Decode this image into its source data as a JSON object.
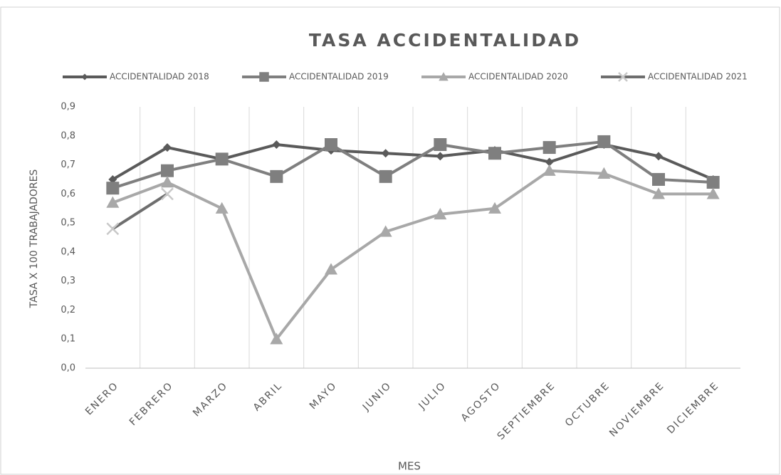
{
  "chart_data": {
    "type": "line",
    "title": "TASA ACCIDENTALIDAD",
    "x_label": "MES",
    "y_label": "TASA X 100 TRABAJADORES",
    "categories": [
      "ENERO",
      "FEBRERO",
      "MARZO",
      "ABRIL",
      "MAYO",
      "JUNIO",
      "JULIO",
      "AGOSTO",
      "SEPTIEMBRE",
      "OCTUBRE",
      "NOVIEMBRE",
      "DICIEMBRE"
    ],
    "series": [
      {
        "name": "ACCIDENTALIDAD 2018",
        "color": "#5a5a5a",
        "marker": "diamond",
        "values": [
          0.65,
          0.76,
          0.72,
          0.77,
          0.75,
          0.74,
          0.73,
          0.75,
          0.71,
          0.77,
          0.73,
          0.65
        ]
      },
      {
        "name": "ACCIDENTALIDAD 2019",
        "color": "#7f7f7f",
        "marker": "square",
        "values": [
          0.62,
          0.68,
          0.72,
          0.66,
          0.77,
          0.66,
          0.77,
          0.74,
          0.76,
          0.78,
          0.65,
          0.64
        ]
      },
      {
        "name": "ACCIDENTALIDAD 2020",
        "color": "#a8a8a8",
        "marker": "triangle",
        "values": [
          0.57,
          0.64,
          0.55,
          0.1,
          0.34,
          0.47,
          0.53,
          0.55,
          0.68,
          0.67,
          0.6,
          0.6
        ]
      },
      {
        "name": "ACCIDENTALIDAD 2021",
        "color": "#6e6e6e",
        "marker": "x",
        "values": [
          0.48,
          0.6,
          null,
          null,
          null,
          null,
          null,
          null,
          null,
          null,
          null,
          null
        ]
      }
    ],
    "ylim": [
      0,
      0.9
    ],
    "yticks": [
      {
        "value": 0,
        "label": "0,0"
      },
      {
        "value": 0.1,
        "label": "0,1"
      },
      {
        "value": 0.2,
        "label": "0,2"
      },
      {
        "value": 0.3,
        "label": "0,3"
      },
      {
        "value": 0.4,
        "label": "0,4"
      },
      {
        "value": 0.5,
        "label": "0,5"
      },
      {
        "value": 0.6,
        "label": "0,6"
      },
      {
        "value": 0.7,
        "label": "0,7"
      },
      {
        "value": 0.8,
        "label": "0,8"
      },
      {
        "value": 0.9,
        "label": "0,9"
      }
    ],
    "legend": "top",
    "grid": true
  }
}
